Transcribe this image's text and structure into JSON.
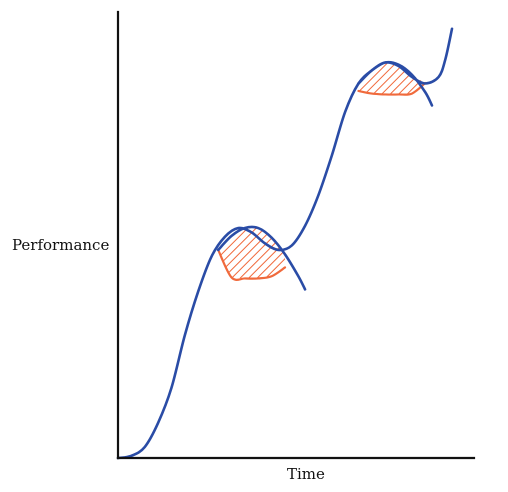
{
  "chart_data": {
    "type": "line",
    "title": "",
    "xlabel": "Time",
    "ylabel": "Performance",
    "grid": false,
    "legend": "none",
    "xlim": [
      0,
      100
    ],
    "ylim": [
      0,
      100
    ],
    "series": [
      {
        "x": [
          0,
          4,
          8,
          12,
          16,
          20,
          24,
          28,
          32,
          36,
          40,
          44,
          48,
          52,
          56,
          60,
          64,
          68,
          72,
          76,
          80,
          84,
          88,
          92,
          96,
          98,
          100
        ],
        "y": [
          0,
          0.5,
          2.5,
          8,
          16,
          28,
          38,
          46,
          50.5,
          52.5,
          51.5,
          49,
          47.5,
          48.5,
          53,
          60,
          69,
          79,
          85.5,
          88.5,
          90.3,
          89.5,
          87,
          85.5,
          87,
          91,
          98
        ]
      },
      {
        "x": [
          30,
          34,
          38,
          42,
          46,
          50,
          54,
          56
        ],
        "y": [
          47.5,
          50.7,
          52.5,
          52.5,
          50.3,
          46.5,
          41.5,
          38.5
        ]
      },
      {
        "x": [
          72,
          76,
          80,
          84,
          88,
          92,
          94
        ],
        "y": [
          85.5,
          88.5,
          90.3,
          89.8,
          87.5,
          83.5,
          80.5
        ]
      }
    ],
    "shaded_regions": [
      {
        "x_start": 30,
        "x_end": 50,
        "lower": [
          47.5,
          41.2,
          41.0,
          41.0,
          41.5,
          43.5
        ],
        "upper": [
          47.5,
          50.7,
          52.5,
          52.5,
          50.3,
          46.5
        ],
        "x": [
          30,
          34,
          38,
          42,
          46,
          50
        ]
      },
      {
        "x_start": 72,
        "x_end": 92,
        "lower": [
          83.8,
          83.2,
          83.0,
          83.0,
          83.2,
          85.6
        ],
        "upper": [
          85.5,
          88.5,
          90.3,
          89.8,
          87.5,
          85.6
        ],
        "x": [
          72,
          76,
          80,
          84,
          88,
          92
        ]
      }
    ],
    "colors": {
      "curve": "#2a4ca6",
      "shade": "#f06a3c",
      "axis": "#111111"
    }
  }
}
